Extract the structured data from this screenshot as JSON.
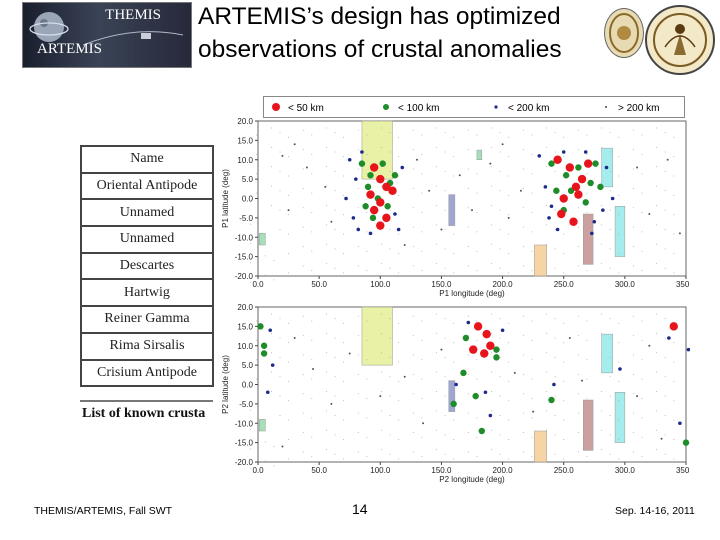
{
  "logo": {
    "top_label": "THEMIS",
    "bottom_label": "ARTEMIS"
  },
  "title": {
    "line1": "ARTEMIS’s design has optimized",
    "line2": "observations of crustal anomalies"
  },
  "table": {
    "header": "Name",
    "rows": [
      "Oriental Antipode",
      "Unnamed",
      "Unnamed",
      "Descartes",
      "Hartwig",
      "Reiner Gamma",
      "Rima Sirsalis",
      "Crisium Antipode"
    ],
    "caption": "List of known crusta"
  },
  "legend": {
    "items": [
      {
        "label": "< 50 km",
        "color": "#e8141c"
      },
      {
        "label": "< 100 km",
        "color": "#1e8c28"
      },
      {
        "label": "< 200 km",
        "color": "#1c2a8c"
      },
      {
        "label": "> 200 km",
        "color": "#444444"
      }
    ]
  },
  "footer": {
    "left": "THEMIS/ARTEMIS, Fall SWT",
    "page": "14",
    "date": "Sep. 14-16, 2011"
  },
  "chart_data": [
    {
      "type": "scatter",
      "ylabel": "P1 latitude (deg)",
      "xlabel": "P1 longitude (deg)",
      "xlim": [
        0,
        350
      ],
      "ylim": [
        -20,
        20
      ],
      "xticks": [
        "0.0",
        "50.0",
        "100.0",
        "150.0",
        "200.0",
        "250.0",
        "300.0",
        "350.0"
      ],
      "yticks": [
        "20.0",
        "15.0",
        "10.0",
        "5.0",
        "0.0",
        "-5.0",
        "-10.0",
        "-15.0",
        "-20.0"
      ],
      "regions": [
        {
          "x": [
            85,
            110
          ],
          "y": [
            5,
            20
          ],
          "color": "#e2ee8e"
        },
        {
          "x": [
            179,
            183
          ],
          "y": [
            10,
            12.5
          ],
          "color": "#8ed8a8"
        },
        {
          "x": [
            156,
            161
          ],
          "y": [
            -7,
            1
          ],
          "color": "#8890c8"
        },
        {
          "x": [
            1,
            6
          ],
          "y": [
            -12,
            -9
          ],
          "color": "#8ed8a8"
        },
        {
          "x": [
            226,
            236
          ],
          "y": [
            -20,
            -12
          ],
          "color": "#f5c98c"
        },
        {
          "x": [
            266,
            274
          ],
          "y": [
            -17,
            -4
          ],
          "color": "#c08888"
        },
        {
          "x": [
            281,
            290
          ],
          "y": [
            3,
            13
          ],
          "color": "#8ee8e8"
        },
        {
          "x": [
            292,
            300
          ],
          "y": [
            -15,
            -2
          ],
          "color": "#8ee8e8"
        }
      ],
      "series": [
        {
          "name": "< 50 km",
          "color": "#e8141c",
          "points": [
            [
              95,
              8
            ],
            [
              100,
              5
            ],
            [
              105,
              3
            ],
            [
              110,
              2
            ],
            [
              100,
              -1
            ],
            [
              95,
              -3
            ],
            [
              105,
              -5
            ],
            [
              100,
              -7
            ],
            [
              92,
              1
            ],
            [
              245,
              10
            ],
            [
              255,
              8
            ],
            [
              260,
              3
            ],
            [
              250,
              0
            ],
            [
              265,
              5
            ],
            [
              270,
              9
            ],
            [
              248,
              -4
            ],
            [
              258,
              -6
            ],
            [
              262,
              1
            ]
          ]
        },
        {
          "name": "< 100 km",
          "color": "#1e8c28",
          "points": [
            [
              85,
              9
            ],
            [
              92,
              6
            ],
            [
              102,
              9
            ],
            [
              108,
              4
            ],
            [
              90,
              3
            ],
            [
              98,
              0
            ],
            [
              88,
              -2
            ],
            [
              106,
              -2
            ],
            [
              94,
              -5
            ],
            [
              112,
              6
            ],
            [
              240,
              9
            ],
            [
              252,
              6
            ],
            [
              262,
              8
            ],
            [
              272,
              4
            ],
            [
              244,
              2
            ],
            [
              256,
              2
            ],
            [
              268,
              -1
            ],
            [
              280,
              3
            ],
            [
              250,
              -3
            ],
            [
              276,
              9
            ]
          ]
        },
        {
          "name": "< 200 km",
          "color": "#1c2a8c",
          "points": [
            [
              75,
              10
            ],
            [
              80,
              5
            ],
            [
              78,
              -5
            ],
            [
              82,
              -8
            ],
            [
              115,
              -8
            ],
            [
              118,
              8
            ],
            [
              85,
              12
            ],
            [
              112,
              -4
            ],
            [
              72,
              0
            ],
            [
              92,
              -9
            ],
            [
              230,
              11
            ],
            [
              235,
              3
            ],
            [
              238,
              -5
            ],
            [
              245,
              -8
            ],
            [
              275,
              -6
            ],
            [
              282,
              -3
            ],
            [
              285,
              8
            ],
            [
              240,
              -2
            ],
            [
              268,
              12
            ],
            [
              290,
              0
            ],
            [
              250,
              12
            ],
            [
              273,
              -9
            ]
          ]
        },
        {
          "name": "> 200 km",
          "color": "#555555",
          "points": [
            [
              20,
              11
            ],
            [
              40,
              8
            ],
            [
              55,
              3
            ],
            [
              60,
              -6
            ],
            [
              25,
              -3
            ],
            [
              130,
              10
            ],
            [
              140,
              2
            ],
            [
              150,
              -8
            ],
            [
              165,
              6
            ],
            [
              175,
              -3
            ],
            [
              190,
              9
            ],
            [
              205,
              -5
            ],
            [
              215,
              2
            ],
            [
              310,
              8
            ],
            [
              320,
              -4
            ],
            [
              335,
              10
            ],
            [
              345,
              -9
            ],
            [
              30,
              14
            ],
            [
              120,
              -12
            ],
            [
              200,
              14
            ]
          ]
        }
      ]
    },
    {
      "type": "scatter",
      "ylabel": "P2 latitude (deg)",
      "xlabel": "P2 longitude (deg)",
      "xlim": [
        0,
        350
      ],
      "ylim": [
        -20,
        20
      ],
      "xticks": [
        "0.0",
        "50.0",
        "100.0",
        "150.0",
        "200.0",
        "250.0",
        "300.0",
        "350.0"
      ],
      "yticks": [
        "20.0",
        "15.0",
        "10.0",
        "5.0",
        "0.0",
        "-5.0",
        "-10.0",
        "-15.0",
        "-20.0"
      ],
      "regions": [
        {
          "x": [
            85,
            110
          ],
          "y": [
            5,
            20
          ],
          "color": "#e2ee8e"
        },
        {
          "x": [
            156,
            161
          ],
          "y": [
            -7,
            1
          ],
          "color": "#8890c8"
        },
        {
          "x": [
            1,
            6
          ],
          "y": [
            -12,
            -9
          ],
          "color": "#8ed8a8"
        },
        {
          "x": [
            226,
            236
          ],
          "y": [
            -20,
            -12
          ],
          "color": "#f5c98c"
        },
        {
          "x": [
            266,
            274
          ],
          "y": [
            -17,
            -4
          ],
          "color": "#c08888"
        },
        {
          "x": [
            281,
            290
          ],
          "y": [
            3,
            13
          ],
          "color": "#8ee8e8"
        },
        {
          "x": [
            292,
            300
          ],
          "y": [
            -15,
            -2
          ],
          "color": "#8ee8e8"
        }
      ],
      "series": [
        {
          "name": "< 50 km",
          "color": "#e8141c",
          "points": [
            [
              180,
              15
            ],
            [
              187,
              13
            ],
            [
              176,
              9
            ],
            [
              190,
              10
            ],
            [
              185,
              8
            ],
            [
              340,
              15
            ]
          ]
        },
        {
          "name": "< 100 km",
          "color": "#1e8c28",
          "points": [
            [
              2,
              15
            ],
            [
              5,
              10
            ],
            [
              5,
              8
            ],
            [
              170,
              12
            ],
            [
              195,
              9
            ],
            [
              168,
              3
            ],
            [
              178,
              -3
            ],
            [
              183,
              -12
            ],
            [
              195,
              7
            ],
            [
              240,
              -4
            ],
            [
              350,
              -15
            ],
            [
              160,
              -5
            ]
          ]
        },
        {
          "name": "< 200 km",
          "color": "#1c2a8c",
          "points": [
            [
              10,
              14
            ],
            [
              12,
              5
            ],
            [
              172,
              16
            ],
            [
              200,
              14
            ],
            [
              162,
              0
            ],
            [
              186,
              -2
            ],
            [
              190,
              -8
            ],
            [
              242,
              0
            ],
            [
              296,
              4
            ],
            [
              336,
              12
            ],
            [
              352,
              9
            ],
            [
              8,
              -2
            ],
            [
              345,
              -10
            ]
          ]
        },
        {
          "name": "> 200 km",
          "color": "#555555",
          "points": [
            [
              30,
              12
            ],
            [
              45,
              4
            ],
            [
              60,
              -5
            ],
            [
              75,
              8
            ],
            [
              120,
              2
            ],
            [
              135,
              -10
            ],
            [
              150,
              9
            ],
            [
              210,
              3
            ],
            [
              225,
              -7
            ],
            [
              255,
              12
            ],
            [
              265,
              1
            ],
            [
              310,
              -3
            ],
            [
              320,
              10
            ],
            [
              330,
              -14
            ],
            [
              20,
              -16
            ],
            [
              100,
              -3
            ]
          ]
        }
      ]
    }
  ]
}
